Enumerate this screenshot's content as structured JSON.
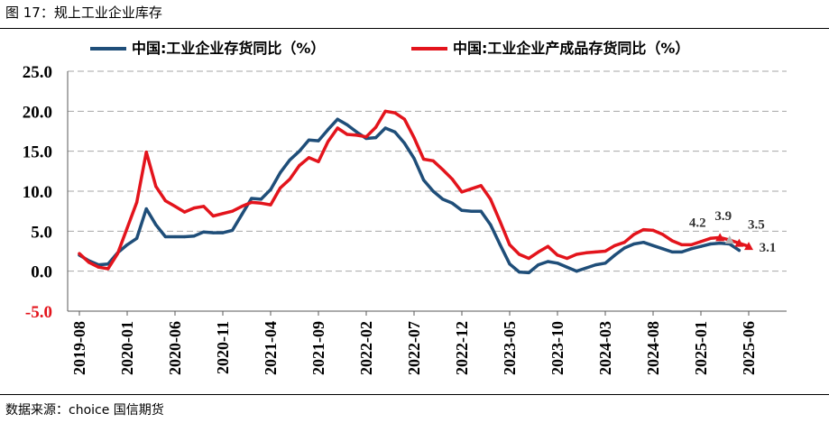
{
  "figure": {
    "source": "数据来源：choice 国信期货"
  },
  "chart_data": {
    "type": "line",
    "title": "图 17：规上工业企业库存",
    "xlabel": "",
    "ylabel": "",
    "ylim": [
      -5,
      25
    ],
    "grid": true,
    "legend": "top",
    "yticks": [
      {
        "value": 25,
        "label": "25.0"
      },
      {
        "value": 20,
        "label": "20.0"
      },
      {
        "value": 15,
        "label": "15.0"
      },
      {
        "value": 10,
        "label": "10.0"
      },
      {
        "value": 5,
        "label": "5.0"
      },
      {
        "value": 0,
        "label": "0.0"
      },
      {
        "value": -5,
        "label": "-5.0",
        "color": "#e3141c"
      }
    ],
    "xtick_every": 5,
    "xtick_labels": [
      "2019-08",
      "2020-01",
      "2020-06",
      "2020-11",
      "2021-04",
      "2021-09",
      "2022-02",
      "2022-07",
      "2022-12",
      "2023-05",
      "2023-10",
      "2024-03",
      "2024-08",
      "2025-01",
      "2025-06"
    ],
    "series": [
      {
        "name": "中国:工业企业存货同比（%）",
        "color": "#1f4e79",
        "values": [
          2.0,
          1.3,
          0.8,
          0.9,
          2.3,
          3.3,
          4.1,
          7.8,
          5.8,
          4.3,
          4.3,
          4.3,
          4.4,
          4.9,
          4.8,
          4.8,
          5.1,
          7.1,
          9.1,
          9.0,
          10.2,
          12.3,
          13.9,
          15.0,
          16.4,
          16.3,
          17.7,
          19.0,
          18.3,
          17.4,
          16.6,
          16.7,
          17.9,
          17.4,
          16.0,
          14.1,
          11.4,
          10.0,
          9.0,
          8.5,
          7.6,
          7.5,
          7.5,
          5.8,
          3.3,
          0.9,
          -0.1,
          -0.2,
          0.8,
          1.2,
          1.0,
          0.5,
          0.0,
          0.4,
          0.8,
          1.0,
          2.0,
          2.9,
          3.4,
          3.6,
          3.2,
          2.8,
          2.4,
          2.4,
          2.8,
          3.1,
          3.4,
          3.5,
          3.4,
          2.6,
          null
        ]
      },
      {
        "name": "中国:工业企业产成品存货同比（%）",
        "color": "#e3141c",
        "values": [
          2.2,
          1.1,
          0.5,
          0.3,
          2.2,
          5.4,
          8.6,
          14.9,
          10.6,
          8.8,
          8.1,
          7.4,
          7.9,
          8.1,
          6.9,
          7.2,
          7.5,
          8.1,
          8.6,
          8.5,
          8.3,
          10.4,
          11.5,
          13.2,
          14.2,
          13.7,
          16.2,
          17.9,
          17.1,
          17.0,
          16.8,
          18.0,
          20.0,
          19.8,
          19.0,
          16.7,
          14.0,
          13.8,
          12.7,
          11.5,
          9.9,
          10.3,
          10.7,
          9.0,
          6.2,
          3.3,
          2.1,
          1.6,
          2.4,
          3.1,
          2.0,
          1.6,
          2.1,
          2.3,
          2.4,
          2.5,
          3.2,
          3.6,
          4.6,
          5.2,
          5.1,
          4.6,
          3.8,
          3.3,
          3.3,
          3.7,
          4.1,
          4.2,
          3.9,
          3.5,
          3.1
        ]
      }
    ],
    "annotations": [
      {
        "series": 1,
        "point_index": 67,
        "value": 4.2,
        "label": "4.2",
        "marker_color": "#e3141c"
      },
      {
        "series": 1,
        "point_index": 68,
        "value": 3.9,
        "label": "3.9",
        "marker_color": "#b4b4b4"
      },
      {
        "series": 1,
        "point_index": 69,
        "value": 3.5,
        "label": "3.5",
        "marker_color": "#e3141c"
      },
      {
        "series": 1,
        "point_index": 70,
        "value": 3.1,
        "label": "3.1",
        "marker_color": "#e3141c"
      }
    ]
  }
}
